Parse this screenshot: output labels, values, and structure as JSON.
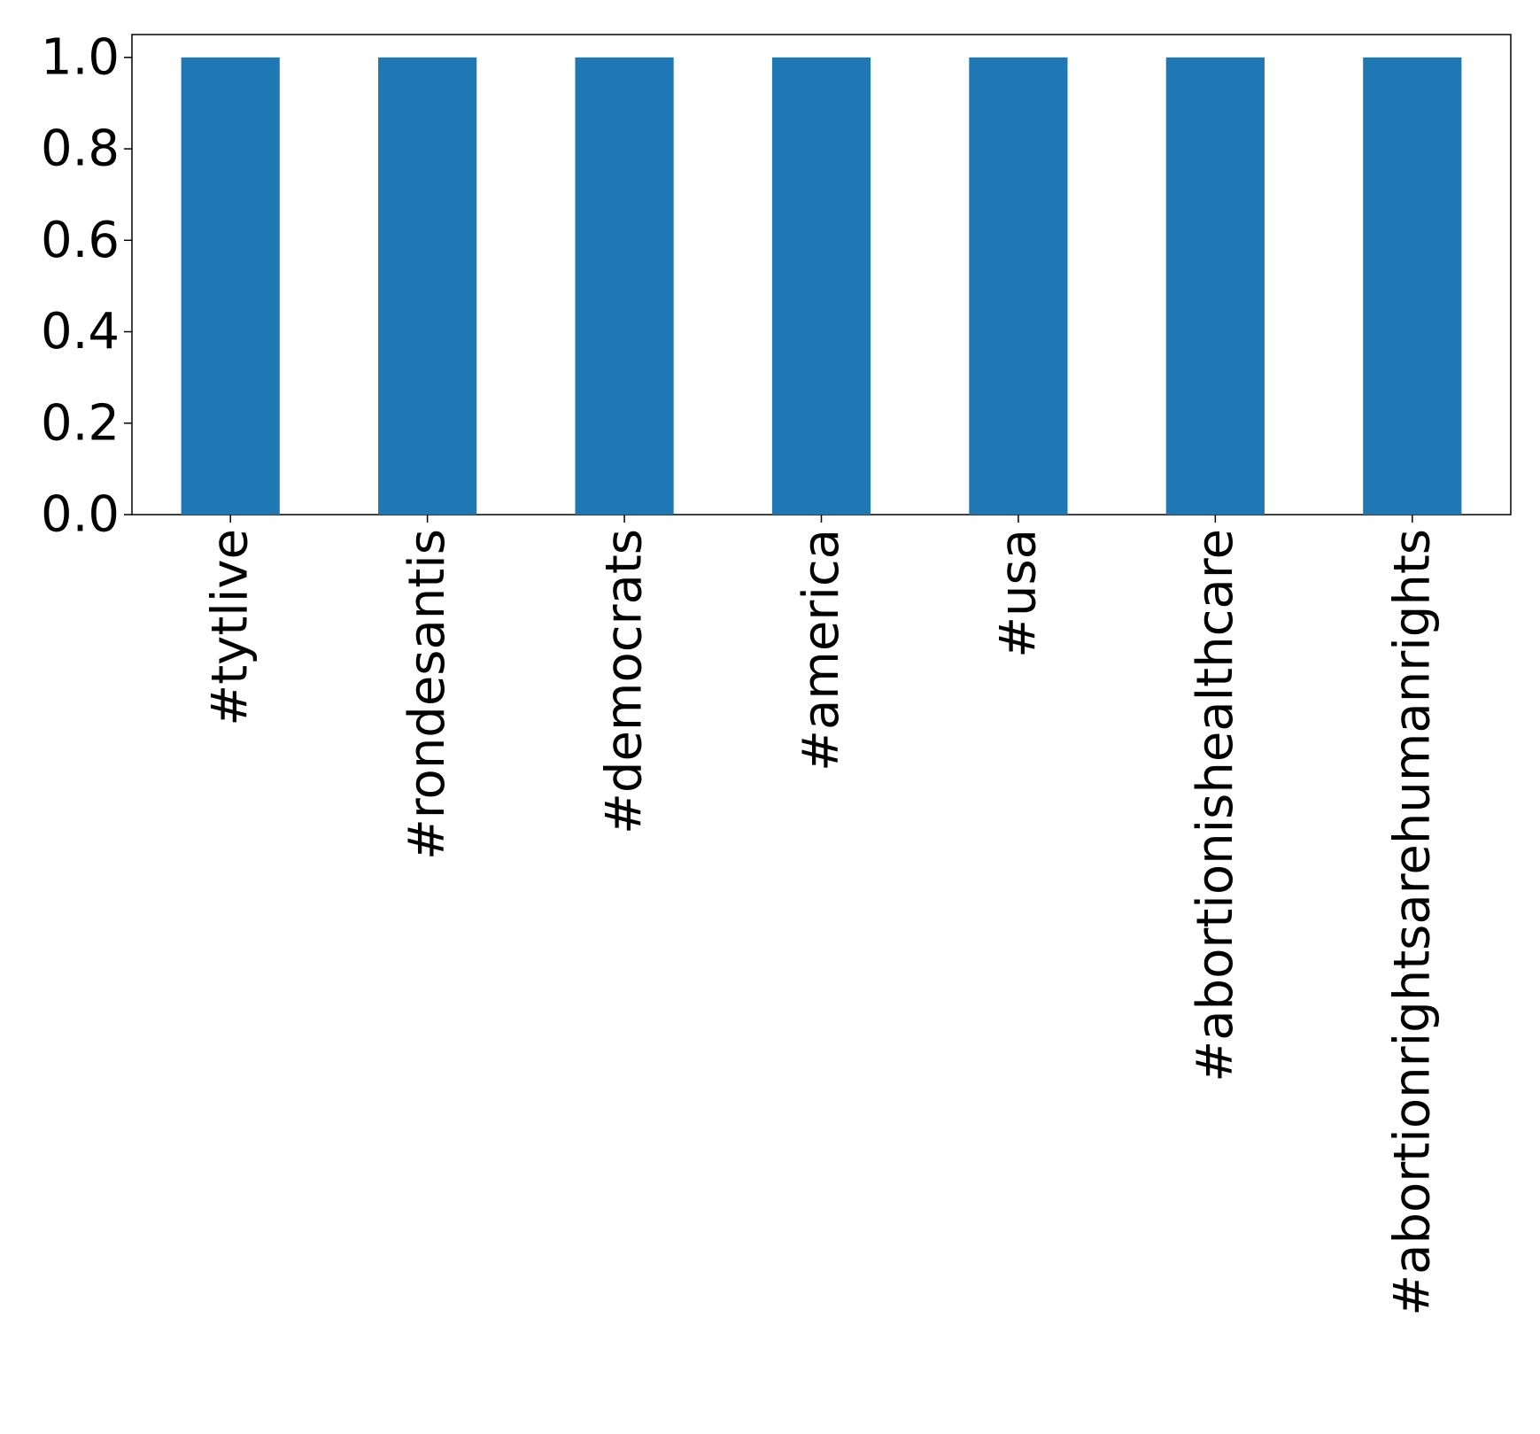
{
  "chart_data": {
    "type": "bar",
    "title": "",
    "xlabel": "",
    "ylabel": "",
    "categories": [
      "#tytlive",
      "#rondesantis",
      "#democrats",
      "#america",
      "#usa",
      "#abortionishealthcare",
      "#abortionrightsarehumanrights"
    ],
    "values": [
      1.0,
      1.0,
      1.0,
      1.0,
      1.0,
      1.0,
      1.0
    ],
    "ylim": [
      0,
      1.05
    ],
    "yticks": [
      "0.0",
      "0.2",
      "0.4",
      "0.6",
      "0.8",
      "1.0"
    ],
    "grid": false,
    "legend": "none",
    "bar_color": "#1f77b4"
  }
}
